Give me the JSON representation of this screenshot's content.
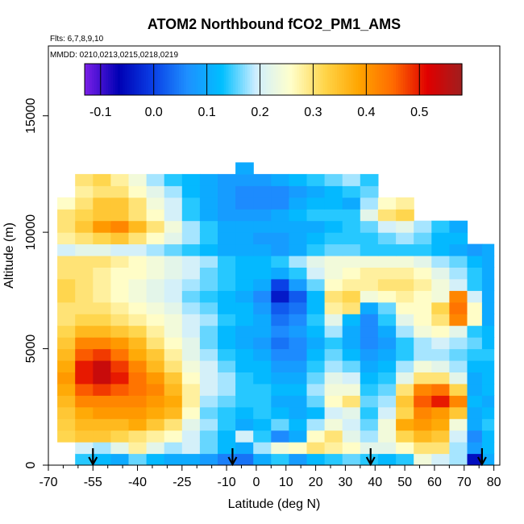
{
  "chart_data": {
    "type": "heatmap",
    "title": "ATOM2 Northbound fCO2_PM1_AMS",
    "subtitle_lines": [
      "Flts: 6,7,8,9,10",
      "MMDD: 0210,0213,0215,0218,0219"
    ],
    "xlabel": "Latitude (deg N)",
    "ylabel": "Altitude (m)",
    "xlim": [
      -70,
      82
    ],
    "ylim": [
      0,
      18000
    ],
    "x_ticks": [
      -70,
      -55,
      -40,
      -25,
      -10,
      0,
      10,
      20,
      30,
      40,
      50,
      60,
      70,
      80
    ],
    "x_minor_ticks": [
      -65,
      -60,
      -50,
      -45,
      -35,
      -30,
      -20,
      -15,
      -5,
      5,
      15,
      25,
      35,
      45,
      55,
      65,
      75
    ],
    "y_ticks": [
      0,
      5000,
      10000,
      15000
    ],
    "colorbar": {
      "range": [
        -0.13,
        0.58
      ],
      "tick_values": [
        -0.1,
        0.0,
        0.1,
        0.2,
        0.3,
        0.4,
        0.5
      ],
      "tick_labels": [
        "-0.1",
        "0.0",
        "0.1",
        "0.2",
        "0.3",
        "0.4",
        "0.5"
      ],
      "colors": [
        "#7b1fe8",
        "#0000b4",
        "#0a40e6",
        "#1e90ff",
        "#00bfff",
        "#cfeeff",
        "#ffffcc",
        "#ffd54a",
        "#ffa500",
        "#ff6a00",
        "#e00000",
        "#a01e1e"
      ]
    },
    "flight_marker_latitudes": [
      -55,
      -8,
      38.5,
      76
    ],
    "lat_centers": [
      -64,
      -58,
      -52,
      -46,
      -40,
      -34,
      -28,
      -22,
      -16,
      -10,
      -4,
      2,
      8,
      14,
      20,
      26,
      32,
      38,
      44,
      50,
      56,
      62,
      68,
      74,
      78
    ],
    "alt_centers": [
      250,
      750,
      1250,
      1750,
      2250,
      2750,
      3250,
      3750,
      4250,
      4750,
      5250,
      5750,
      6250,
      6750,
      7250,
      7750,
      8250,
      8750,
      9250,
      9750,
      10250,
      10750,
      11250,
      11750,
      12250,
      12750
    ],
    "values": [
      [
        null,
        0.14,
        0.12,
        0.1,
        0.16,
        0.12,
        0.1,
        0.1,
        0.08,
        0.05,
        0.04,
        0.1,
        0.14,
        0.08,
        0.12,
        0.14,
        0.16,
        0.14,
        0.12,
        0.14,
        0.24,
        0.2,
        0.18,
        -0.05,
        0.1
      ],
      [
        null,
        0.2,
        0.18,
        0.22,
        0.28,
        0.22,
        0.18,
        0.2,
        0.16,
        0.12,
        0.1,
        0.18,
        0.24,
        0.26,
        0.3,
        0.28,
        0.26,
        0.22,
        0.22,
        0.26,
        0.3,
        0.3,
        0.18,
        0.08,
        0.12
      ],
      [
        0.32,
        0.34,
        0.34,
        0.32,
        0.3,
        0.28,
        0.26,
        0.2,
        0.16,
        0.12,
        0.2,
        0.14,
        0.06,
        0.1,
        0.26,
        0.3,
        0.22,
        0.18,
        0.24,
        0.32,
        0.36,
        0.34,
        0.2,
        0.06,
        0.12
      ],
      [
        0.33,
        0.36,
        0.36,
        0.36,
        0.38,
        0.34,
        0.3,
        0.22,
        0.18,
        0.14,
        0.1,
        0.12,
        0.16,
        0.12,
        0.18,
        0.24,
        0.2,
        0.16,
        0.24,
        0.38,
        0.4,
        0.38,
        0.24,
        0.1,
        0.14
      ],
      [
        0.34,
        0.38,
        0.4,
        0.4,
        0.4,
        0.38,
        0.36,
        0.26,
        0.16,
        0.14,
        0.12,
        0.14,
        0.12,
        0.1,
        0.12,
        0.2,
        0.22,
        0.14,
        0.2,
        0.32,
        0.42,
        0.4,
        0.34,
        0.1,
        0.12
      ],
      [
        0.36,
        0.42,
        0.42,
        0.42,
        0.42,
        0.4,
        0.38,
        0.28,
        0.18,
        0.16,
        0.14,
        0.14,
        0.1,
        0.1,
        0.16,
        0.26,
        0.3,
        0.16,
        0.18,
        0.34,
        0.46,
        0.5,
        0.42,
        0.12,
        0.1
      ],
      [
        0.38,
        0.46,
        0.48,
        0.46,
        0.44,
        0.42,
        0.36,
        0.28,
        0.2,
        0.18,
        0.14,
        0.14,
        0.12,
        0.12,
        0.18,
        0.24,
        0.24,
        0.14,
        0.16,
        0.3,
        0.42,
        0.44,
        0.32,
        0.1,
        0.12
      ],
      [
        0.4,
        0.5,
        0.54,
        0.5,
        0.44,
        0.4,
        0.34,
        0.26,
        0.2,
        0.18,
        0.14,
        0.12,
        0.1,
        0.1,
        0.16,
        0.22,
        0.2,
        0.12,
        0.14,
        0.22,
        0.3,
        0.3,
        0.22,
        0.1,
        0.12
      ],
      [
        0.38,
        0.5,
        0.54,
        0.48,
        0.42,
        0.36,
        0.3,
        0.24,
        0.2,
        0.16,
        0.12,
        0.12,
        0.08,
        0.08,
        0.14,
        0.18,
        0.16,
        0.1,
        0.12,
        0.18,
        0.24,
        0.22,
        0.18,
        0.12,
        0.12
      ],
      [
        0.36,
        0.46,
        0.48,
        0.44,
        0.38,
        0.34,
        0.28,
        0.22,
        0.18,
        0.14,
        0.12,
        0.1,
        0.06,
        0.06,
        0.12,
        0.16,
        0.12,
        0.08,
        0.1,
        0.14,
        0.18,
        0.18,
        0.16,
        0.14,
        0.14
      ],
      [
        0.34,
        0.42,
        0.42,
        0.4,
        0.36,
        0.3,
        0.26,
        0.22,
        0.16,
        0.12,
        0.1,
        0.08,
        0.04,
        0.06,
        0.1,
        0.14,
        0.1,
        0.06,
        0.08,
        0.14,
        0.18,
        0.2,
        0.18,
        0.16,
        0.12
      ],
      [
        0.32,
        0.36,
        0.36,
        0.34,
        0.32,
        0.28,
        0.24,
        0.2,
        0.16,
        0.12,
        0.1,
        0.1,
        0.06,
        0.08,
        0.12,
        0.18,
        0.1,
        0.06,
        0.1,
        0.18,
        0.24,
        0.26,
        0.22,
        0.14,
        0.12
      ],
      [
        0.3,
        0.32,
        0.32,
        0.3,
        0.28,
        0.26,
        0.24,
        0.2,
        0.18,
        0.14,
        0.12,
        0.1,
        0.04,
        0.06,
        0.14,
        0.22,
        0.12,
        0.06,
        0.14,
        0.22,
        0.26,
        0.3,
        0.42,
        0.26,
        0.1
      ],
      [
        0.3,
        0.3,
        0.3,
        0.28,
        0.26,
        0.24,
        0.22,
        0.18,
        0.16,
        0.12,
        0.12,
        0.08,
        0.02,
        0.04,
        0.12,
        0.28,
        0.3,
        0.1,
        0.16,
        0.26,
        0.26,
        0.32,
        0.44,
        0.26,
        0.1
      ],
      [
        0.32,
        0.3,
        0.28,
        0.26,
        0.24,
        0.22,
        0.2,
        0.16,
        0.14,
        0.12,
        0.1,
        0.06,
        -0.04,
        0.02,
        0.12,
        0.3,
        0.32,
        0.24,
        0.26,
        0.28,
        0.26,
        0.24,
        0.42,
        0.2,
        0.1
      ],
      [
        0.32,
        0.3,
        0.28,
        0.26,
        0.24,
        0.22,
        0.2,
        0.18,
        0.16,
        0.14,
        0.12,
        0.1,
        0.0,
        0.08,
        0.16,
        0.26,
        0.28,
        0.28,
        0.3,
        0.3,
        0.28,
        0.24,
        0.2,
        0.14,
        0.1
      ],
      [
        0.3,
        0.3,
        0.28,
        0.26,
        0.26,
        0.24,
        0.22,
        0.2,
        0.16,
        0.14,
        0.12,
        0.12,
        0.1,
        0.14,
        0.2,
        0.24,
        0.26,
        0.28,
        0.28,
        0.28,
        0.26,
        0.22,
        0.18,
        0.14,
        0.1
      ],
      [
        0.3,
        0.3,
        0.3,
        0.28,
        0.26,
        0.24,
        0.22,
        0.2,
        0.18,
        0.14,
        0.12,
        0.12,
        0.14,
        0.18,
        0.22,
        0.24,
        0.24,
        0.24,
        0.24,
        0.24,
        0.22,
        0.18,
        0.16,
        0.12,
        0.1
      ],
      [
        0.2,
        0.22,
        0.22,
        0.2,
        0.2,
        0.18,
        0.16,
        0.14,
        0.12,
        0.1,
        0.1,
        0.1,
        0.08,
        0.1,
        0.14,
        0.16,
        0.16,
        0.14,
        0.14,
        0.14,
        0.14,
        0.12,
        0.1,
        0.08,
        0.1
      ],
      [
        0.28,
        0.3,
        0.32,
        0.34,
        0.3,
        0.26,
        0.22,
        0.18,
        0.14,
        0.1,
        0.1,
        0.08,
        0.08,
        0.1,
        0.12,
        0.14,
        0.14,
        0.14,
        0.16,
        0.18,
        0.16,
        0.12,
        0.12,
        null,
        null
      ],
      [
        0.3,
        0.34,
        0.4,
        0.42,
        0.36,
        0.3,
        0.24,
        0.18,
        0.14,
        0.1,
        0.1,
        0.1,
        0.1,
        0.1,
        0.1,
        0.12,
        0.14,
        0.16,
        0.2,
        0.22,
        0.18,
        0.14,
        0.1,
        null,
        null
      ],
      [
        0.3,
        0.32,
        0.34,
        0.34,
        0.3,
        0.26,
        0.2,
        0.14,
        0.1,
        0.08,
        0.08,
        0.08,
        0.1,
        0.12,
        0.14,
        0.14,
        0.14,
        0.22,
        0.3,
        0.32,
        null,
        null,
        null,
        null,
        null
      ],
      [
        0.26,
        0.3,
        0.34,
        0.34,
        0.3,
        0.24,
        0.2,
        0.14,
        0.1,
        0.08,
        0.06,
        0.06,
        0.06,
        0.1,
        0.12,
        0.12,
        0.1,
        0.18,
        0.26,
        0.28,
        null,
        null,
        null,
        null,
        null
      ],
      [
        null,
        0.28,
        0.3,
        0.3,
        0.26,
        0.22,
        0.18,
        0.12,
        0.1,
        0.08,
        0.06,
        0.06,
        0.06,
        0.08,
        0.1,
        0.12,
        0.14,
        0.16,
        null,
        null,
        null,
        null,
        null,
        null,
        null
      ],
      [
        null,
        0.3,
        0.32,
        0.28,
        0.24,
        0.18,
        0.14,
        0.12,
        0.1,
        0.08,
        0.08,
        0.08,
        0.1,
        0.12,
        0.14,
        0.16,
        0.18,
        0.14,
        null,
        null,
        null,
        null,
        null,
        null,
        null
      ],
      [
        null,
        null,
        null,
        null,
        null,
        null,
        null,
        null,
        null,
        null,
        0.1,
        null,
        null,
        null,
        null,
        null,
        null,
        null,
        null,
        null,
        null,
        null,
        null,
        null,
        null
      ]
    ]
  }
}
